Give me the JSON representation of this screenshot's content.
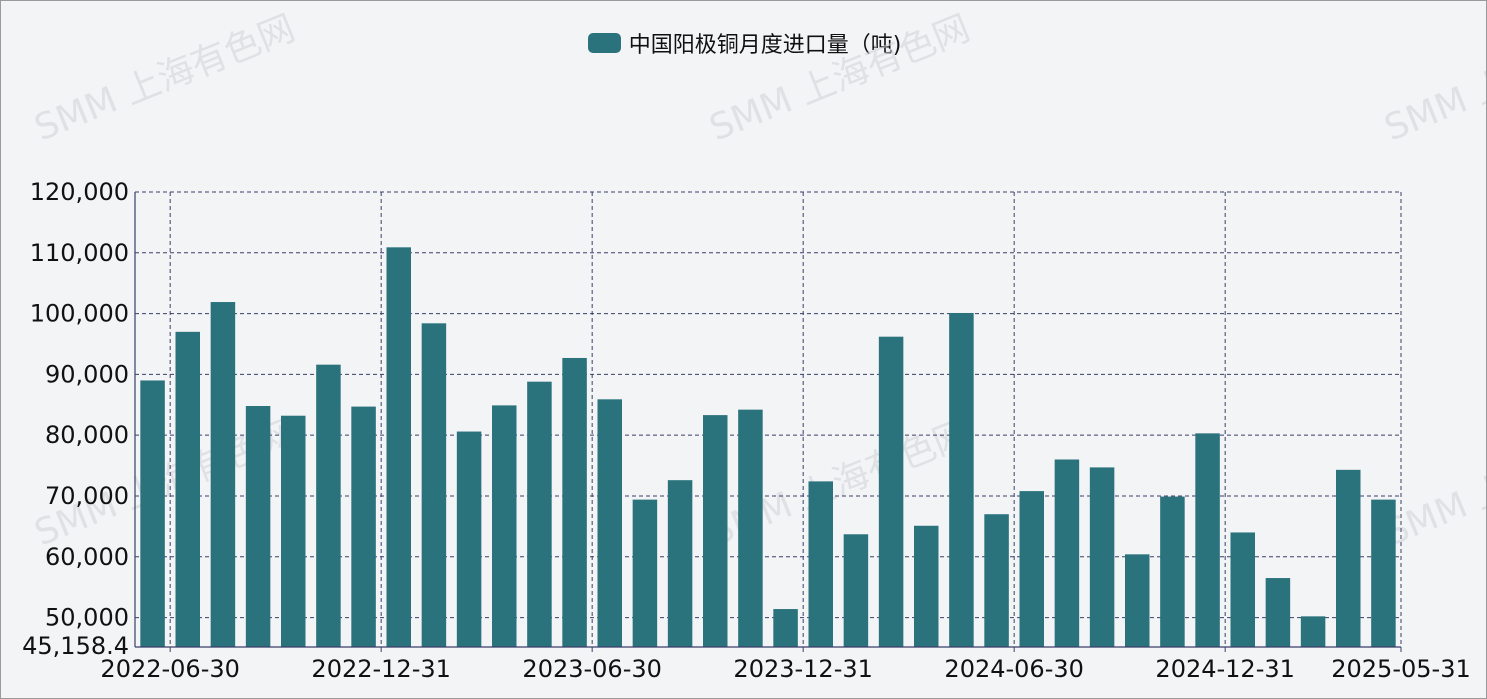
{
  "watermark": "SMM 上海有色网",
  "chart_data": {
    "type": "bar",
    "legend": [
      {
        "name": "中国阳极铜月度进口量（吨)",
        "color": "#2a727c"
      }
    ],
    "series": [
      {
        "name": "中国阳极铜月度进口量（吨)",
        "color": "#2a727c",
        "values": [
          89000,
          97000,
          101900,
          84800,
          83200,
          91600,
          84700,
          110900,
          98400,
          80600,
          84900,
          88800,
          92700,
          85900,
          69400,
          72600,
          83300,
          84200,
          51400,
          72400,
          63700,
          96200,
          65100,
          100100,
          67000,
          70800,
          76000,
          74700,
          60400,
          69900,
          80300,
          64000,
          56500,
          50200,
          74300,
          69400
        ]
      }
    ],
    "x_ticks": [
      "2022-06-30",
      "2022-12-31",
      "2023-06-30",
      "2023-12-31",
      "2024-06-30",
      "2024-12-31",
      "2025-05-31"
    ],
    "x_tick_index": [
      0,
      6,
      12,
      18,
      24,
      30,
      35
    ],
    "y_ticks": [
      "120,000",
      "110,000",
      "100,000",
      "90,000",
      "80,000",
      "70,000",
      "60,000",
      "50,000"
    ],
    "y_tick_values": [
      120000,
      110000,
      100000,
      90000,
      80000,
      70000,
      60000,
      50000
    ],
    "y_min_label": "45,158.4",
    "ylim": [
      45158.4,
      120000
    ],
    "grid": true
  }
}
